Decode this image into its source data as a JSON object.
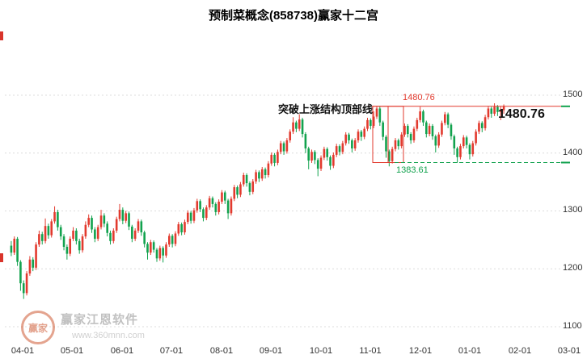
{
  "title": "预制菜概念(858738)赢家十二宫",
  "watermark": {
    "logo_text": "赢家",
    "brand": "赢家江恩软件",
    "site": "www.360mnn.com"
  },
  "chart_data": {
    "type": "candlestick",
    "title": "预制菜概念(858738)赢家十二宫",
    "ylim": [
      1100,
      1500
    ],
    "y_ticks": [
      1500,
      1400,
      1300,
      1200,
      1100
    ],
    "x_ticks": [
      "04-01",
      "05-01",
      "06-01",
      "07-01",
      "08-01",
      "09-01",
      "10-01",
      "11-01",
      "12-01",
      "01-01",
      "02-01",
      "03-01"
    ],
    "grid": "horizontal-dotted",
    "legend": "none",
    "up_color": "#e23a2e",
    "down_color": "#12a24e",
    "annotations": {
      "breakout_text": "突破上涨结构顶部线",
      "top_line": {
        "price": 1480.76,
        "label": "1480.76",
        "color": "#e23a2e"
      },
      "support_line": {
        "price": 1383.61,
        "label": "1383.61",
        "color": "#12a24e"
      },
      "current_price_label": "1480.76"
    },
    "candles": [
      [
        1240,
        1248,
        1222,
        1228
      ],
      [
        1228,
        1256,
        1224,
        1252
      ],
      [
        1252,
        1255,
        1205,
        1212
      ],
      [
        1212,
        1215,
        1162,
        1175
      ],
      [
        1175,
        1180,
        1148,
        1158
      ],
      [
        1158,
        1196,
        1154,
        1192
      ],
      [
        1192,
        1222,
        1188,
        1216
      ],
      [
        1216,
        1220,
        1196,
        1202
      ],
      [
        1202,
        1246,
        1198,
        1242
      ],
      [
        1242,
        1266,
        1238,
        1260
      ],
      [
        1260,
        1264,
        1242,
        1248
      ],
      [
        1248,
        1287,
        1244,
        1274
      ],
      [
        1274,
        1278,
        1252,
        1258
      ],
      [
        1258,
        1286,
        1254,
        1282
      ],
      [
        1282,
        1308,
        1278,
        1298
      ],
      [
        1298,
        1302,
        1266,
        1272
      ],
      [
        1272,
        1276,
        1250,
        1256
      ],
      [
        1256,
        1260,
        1232,
        1238
      ],
      [
        1238,
        1242,
        1216,
        1226
      ],
      [
        1226,
        1256,
        1222,
        1252
      ],
      [
        1252,
        1272,
        1248,
        1266
      ],
      [
        1266,
        1270,
        1242,
        1248
      ],
      [
        1248,
        1252,
        1226,
        1232
      ],
      [
        1232,
        1260,
        1228,
        1256
      ],
      [
        1256,
        1282,
        1252,
        1276
      ],
      [
        1276,
        1294,
        1272,
        1288
      ],
      [
        1288,
        1292,
        1262,
        1268
      ],
      [
        1268,
        1272,
        1246,
        1252
      ],
      [
        1252,
        1276,
        1248,
        1272
      ],
      [
        1272,
        1302,
        1268,
        1292
      ],
      [
        1292,
        1296,
        1272,
        1278
      ],
      [
        1278,
        1282,
        1256,
        1262
      ],
      [
        1262,
        1266,
        1242,
        1248
      ],
      [
        1248,
        1270,
        1244,
        1266
      ],
      [
        1266,
        1290,
        1262,
        1286
      ],
      [
        1286,
        1312,
        1282,
        1302
      ],
      [
        1302,
        1306,
        1277,
        1283
      ],
      [
        1283,
        1300,
        1279,
        1296
      ],
      [
        1296,
        1299,
        1267,
        1273
      ],
      [
        1273,
        1276,
        1246,
        1252
      ],
      [
        1252,
        1270,
        1248,
        1266
      ],
      [
        1266,
        1286,
        1262,
        1282
      ],
      [
        1282,
        1285,
        1257,
        1263
      ],
      [
        1263,
        1266,
        1237,
        1243
      ],
      [
        1243,
        1246,
        1216,
        1228
      ],
      [
        1228,
        1250,
        1224,
        1246
      ],
      [
        1246,
        1249,
        1228,
        1233
      ],
      [
        1233,
        1236,
        1212,
        1218
      ],
      [
        1218,
        1240,
        1214,
        1236
      ],
      [
        1236,
        1239,
        1211,
        1223
      ],
      [
        1223,
        1246,
        1219,
        1242
      ],
      [
        1242,
        1261,
        1238,
        1257
      ],
      [
        1257,
        1260,
        1237,
        1243
      ],
      [
        1243,
        1265,
        1239,
        1261
      ],
      [
        1261,
        1281,
        1257,
        1277
      ],
      [
        1277,
        1280,
        1258,
        1263
      ],
      [
        1263,
        1285,
        1259,
        1281
      ],
      [
        1281,
        1301,
        1277,
        1297
      ],
      [
        1297,
        1300,
        1278,
        1283
      ],
      [
        1283,
        1305,
        1279,
        1301
      ],
      [
        1301,
        1321,
        1297,
        1317
      ],
      [
        1317,
        1320,
        1298,
        1303
      ],
      [
        1303,
        1306,
        1282,
        1288
      ],
      [
        1288,
        1310,
        1284,
        1306
      ],
      [
        1306,
        1326,
        1302,
        1322
      ],
      [
        1322,
        1325,
        1306,
        1312
      ],
      [
        1312,
        1315,
        1292,
        1298
      ],
      [
        1298,
        1320,
        1294,
        1316
      ],
      [
        1316,
        1336,
        1312,
        1332
      ],
      [
        1332,
        1335,
        1312,
        1318
      ],
      [
        1318,
        1321,
        1286,
        1296
      ],
      [
        1296,
        1325,
        1292,
        1321
      ],
      [
        1321,
        1345,
        1317,
        1341
      ],
      [
        1341,
        1344,
        1322,
        1328
      ],
      [
        1328,
        1350,
        1324,
        1346
      ],
      [
        1346,
        1366,
        1342,
        1362
      ],
      [
        1362,
        1365,
        1342,
        1348
      ],
      [
        1348,
        1351,
        1327,
        1333
      ],
      [
        1333,
        1355,
        1329,
        1351
      ],
      [
        1351,
        1371,
        1347,
        1367
      ],
      [
        1367,
        1370,
        1350,
        1356
      ],
      [
        1356,
        1376,
        1352,
        1372
      ],
      [
        1372,
        1375,
        1356,
        1362
      ],
      [
        1362,
        1386,
        1358,
        1382
      ],
      [
        1382,
        1401,
        1378,
        1397
      ],
      [
        1397,
        1400,
        1377,
        1383
      ],
      [
        1383,
        1406,
        1379,
        1402
      ],
      [
        1402,
        1421,
        1398,
        1417
      ],
      [
        1417,
        1420,
        1397,
        1403
      ],
      [
        1403,
        1426,
        1399,
        1422
      ],
      [
        1422,
        1441,
        1418,
        1437
      ],
      [
        1437,
        1462,
        1433,
        1453
      ],
      [
        1453,
        1456,
        1436,
        1442
      ],
      [
        1442,
        1467,
        1438,
        1458
      ],
      [
        1458,
        1461,
        1427,
        1433
      ],
      [
        1433,
        1436,
        1400,
        1408
      ],
      [
        1408,
        1411,
        1372,
        1387
      ],
      [
        1387,
        1406,
        1383,
        1402
      ],
      [
        1402,
        1405,
        1381,
        1388
      ],
      [
        1388,
        1391,
        1360,
        1373
      ],
      [
        1373,
        1396,
        1369,
        1392
      ],
      [
        1392,
        1411,
        1388,
        1407
      ],
      [
        1407,
        1410,
        1387,
        1393
      ],
      [
        1393,
        1396,
        1371,
        1378
      ],
      [
        1378,
        1401,
        1374,
        1397
      ],
      [
        1397,
        1416,
        1393,
        1412
      ],
      [
        1412,
        1415,
        1396,
        1402
      ],
      [
        1402,
        1421,
        1398,
        1417
      ],
      [
        1417,
        1436,
        1413,
        1432
      ],
      [
        1432,
        1435,
        1416,
        1422
      ],
      [
        1422,
        1425,
        1401,
        1408
      ],
      [
        1408,
        1426,
        1404,
        1422
      ],
      [
        1422,
        1441,
        1418,
        1437
      ],
      [
        1437,
        1440,
        1421,
        1428
      ],
      [
        1428,
        1446,
        1424,
        1442
      ],
      [
        1442,
        1461,
        1438,
        1457
      ],
      [
        1457,
        1460,
        1441,
        1447
      ],
      [
        1447,
        1472,
        1443,
        1463
      ],
      [
        1463,
        1481,
        1459,
        1477
      ],
      [
        1477,
        1480,
        1447,
        1453
      ],
      [
        1453,
        1456,
        1422,
        1428
      ],
      [
        1428,
        1431,
        1392,
        1403
      ],
      [
        1403,
        1406,
        1377,
        1386
      ],
      [
        1386,
        1411,
        1382,
        1407
      ],
      [
        1407,
        1426,
        1403,
        1422
      ],
      [
        1422,
        1425,
        1406,
        1412
      ],
      [
        1412,
        1436,
        1408,
        1432
      ],
      [
        1432,
        1451,
        1428,
        1447
      ],
      [
        1447,
        1450,
        1427,
        1433
      ],
      [
        1433,
        1436,
        1416,
        1422
      ],
      [
        1422,
        1446,
        1418,
        1442
      ],
      [
        1442,
        1461,
        1438,
        1457
      ],
      [
        1457,
        1480,
        1453,
        1472
      ],
      [
        1472,
        1475,
        1447,
        1453
      ],
      [
        1453,
        1456,
        1427,
        1433
      ],
      [
        1433,
        1451,
        1429,
        1447
      ],
      [
        1447,
        1450,
        1423,
        1429
      ],
      [
        1429,
        1432,
        1401,
        1413
      ],
      [
        1413,
        1436,
        1409,
        1432
      ],
      [
        1432,
        1456,
        1428,
        1452
      ],
      [
        1452,
        1471,
        1448,
        1467
      ],
      [
        1467,
        1470,
        1443,
        1449
      ],
      [
        1449,
        1452,
        1423,
        1429
      ],
      [
        1429,
        1432,
        1397,
        1408
      ],
      [
        1408,
        1411,
        1383,
        1393
      ],
      [
        1393,
        1416,
        1389,
        1412
      ],
      [
        1412,
        1431,
        1408,
        1427
      ],
      [
        1427,
        1430,
        1408,
        1414
      ],
      [
        1414,
        1417,
        1389,
        1398
      ],
      [
        1398,
        1421,
        1394,
        1417
      ],
      [
        1417,
        1441,
        1413,
        1437
      ],
      [
        1437,
        1456,
        1433,
        1452
      ],
      [
        1452,
        1455,
        1436,
        1443
      ],
      [
        1443,
        1466,
        1439,
        1462
      ],
      [
        1462,
        1481,
        1458,
        1477
      ],
      [
        1477,
        1480,
        1461,
        1468
      ],
      [
        1468,
        1486,
        1464,
        1480
      ],
      [
        1480,
        1483,
        1464,
        1471
      ],
      [
        1471,
        1481,
        1457,
        1474
      ],
      [
        1474,
        1484,
        1468,
        1480.76
      ]
    ]
  }
}
